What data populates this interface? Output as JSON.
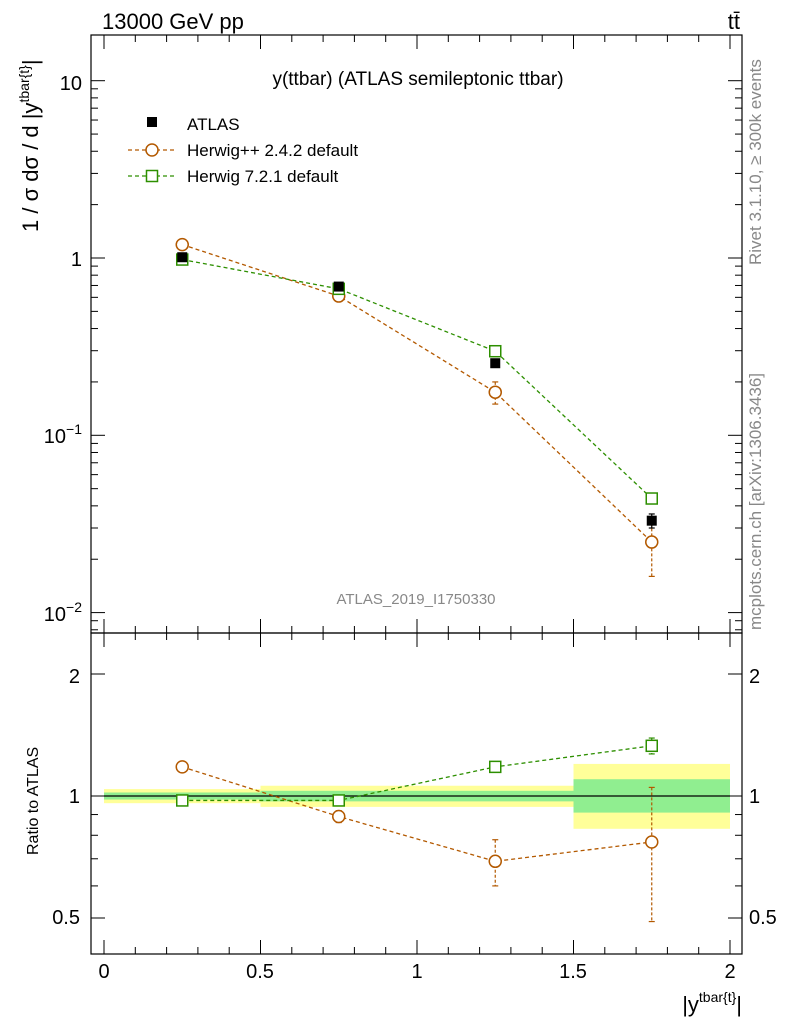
{
  "header": {
    "energy_label": "13000 GeV pp",
    "process_label": "tt̄"
  },
  "side_labels": {
    "rivet": "Rivet 3.1.10, ≥ 300k events",
    "source": "mcplots.cern.ch [arXiv:1306.3436]"
  },
  "chart_data": [
    {
      "type": "line",
      "title": "y(ttbar) (ATLAS semileptonic ttbar)",
      "watermark": "ATLAS_2019_I1750330",
      "yscale": "log",
      "ylabel": "1 / σ dσ / d |y^tbar{t}|",
      "ylabel_main": "1 / σ dσ / d |y",
      "ylabel_sup": "tbar{t}",
      "ylabel_end": "|",
      "xlim": [
        0,
        2
      ],
      "ylim": [
        0.008,
        18
      ],
      "ytick_labels": [
        {
          "value": 10,
          "label": "10"
        },
        {
          "value": 1,
          "label": "1"
        },
        {
          "value": 0.1,
          "base": "10",
          "exp": "−1"
        },
        {
          "value": 0.01,
          "base": "10",
          "exp": "−2"
        }
      ],
      "legend_position": "top-left",
      "bins": [
        [
          0,
          0.5
        ],
        [
          0.5,
          1.0
        ],
        [
          1.0,
          1.5
        ],
        [
          1.5,
          2.0
        ]
      ],
      "series": [
        {
          "name": "ATLAS",
          "color": "#000000",
          "marker": "filled-square",
          "x": [
            0.25,
            0.75,
            1.25,
            1.75
          ],
          "y": [
            1.01,
            0.69,
            0.255,
            0.033
          ],
          "err": [
            0.02,
            0.02,
            0.01,
            0.003
          ]
        },
        {
          "name": "Herwig++ 2.4.2 default",
          "color": "#b35900",
          "marker": "open-circle",
          "x": [
            0.25,
            0.75,
            1.25,
            1.75
          ],
          "y": [
            1.19,
            0.61,
            0.175,
            0.025
          ],
          "err": [
            0.035,
            0.02,
            0.025,
            0.009
          ]
        },
        {
          "name": "Herwig 7.2.1 default",
          "color": "#2d8f00",
          "marker": "open-square",
          "x": [
            0.25,
            0.75,
            1.25,
            1.75
          ],
          "y": [
            0.98,
            0.67,
            0.298,
            0.044
          ],
          "err": [
            0.01,
            0.01,
            0.005,
            0.002
          ]
        }
      ]
    },
    {
      "type": "line",
      "ylabel": "Ratio to ATLAS",
      "xlabel": "|y^tbar{t}|",
      "xlabel_main": "|y",
      "xlabel_sup": "tbar{t}",
      "xlabel_end": "|",
      "xlim": [
        0,
        2
      ],
      "ylim": [
        0.4,
        2.5
      ],
      "xticks": [
        {
          "value": 0,
          "label": "0"
        },
        {
          "value": 0.5,
          "label": "0.5"
        },
        {
          "value": 1,
          "label": "1"
        },
        {
          "value": 1.5,
          "label": "1.5"
        },
        {
          "value": 2,
          "label": "2"
        }
      ],
      "yticks": [
        {
          "value": 2,
          "label": "2"
        },
        {
          "value": 1,
          "label": "1"
        },
        {
          "value": 0.5,
          "label": "0.5"
        }
      ],
      "bands": [
        {
          "bin": [
            0,
            0.5
          ],
          "green": [
            0.98,
            1.02
          ],
          "yellow": [
            0.96,
            1.04
          ]
        },
        {
          "bin": [
            0.5,
            1.0
          ],
          "green": [
            0.97,
            1.03
          ],
          "yellow": [
            0.94,
            1.06
          ]
        },
        {
          "bin": [
            1.0,
            1.5
          ],
          "green": [
            0.97,
            1.03
          ],
          "yellow": [
            0.94,
            1.06
          ]
        },
        {
          "bin": [
            1.5,
            2.0
          ],
          "green": [
            0.91,
            1.1
          ],
          "yellow": [
            0.83,
            1.2
          ]
        }
      ],
      "band_colors": {
        "green": "#90ee90",
        "yellow": "#ffff99"
      },
      "series": [
        {
          "name": "Herwig++ 2.4.2 default",
          "color": "#b35900",
          "marker": "open-circle",
          "x": [
            0.25,
            0.75,
            1.25,
            1.75
          ],
          "y": [
            1.18,
            0.89,
            0.69,
            0.77
          ],
          "err": [
            0.03,
            0.03,
            0.09,
            0.28
          ]
        },
        {
          "name": "Herwig 7.2.1 default",
          "color": "#2d8f00",
          "marker": "open-square",
          "x": [
            0.25,
            0.75,
            1.25,
            1.75
          ],
          "y": [
            0.975,
            0.975,
            1.18,
            1.33
          ],
          "err": [
            0.005,
            0.005,
            0.01,
            0.06
          ]
        }
      ]
    }
  ]
}
